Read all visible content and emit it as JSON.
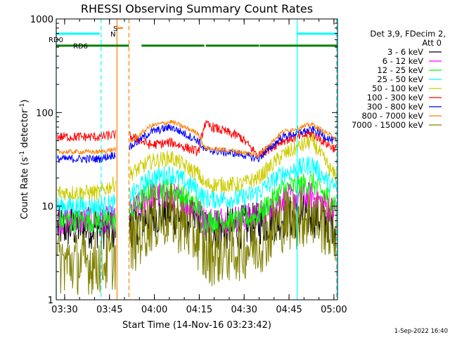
{
  "chart_data": {
    "type": "line",
    "title": "RHESSI Observing Summary Count Rates",
    "xlabel": "Start Time (14-Nov-16 03:23:42)",
    "ylabel_main": "Count Rate (s",
    "ylabel_sup1": "-1",
    "ylabel_mid": " detector",
    "ylabel_sup2": "-1",
    "ylabel_end": ")",
    "yscale": "log",
    "ylim": [
      1,
      1000
    ],
    "xlim_minutes": [
      3.5,
      97.5
    ],
    "x_ticks": [
      {
        "label": "03:30",
        "min": 6.3
      },
      {
        "label": "03:45",
        "min": 21.3
      },
      {
        "label": "04:00",
        "min": 36.3
      },
      {
        "label": "04:15",
        "min": 51.3
      },
      {
        "label": "04:30",
        "min": 66.3
      },
      {
        "label": "04:45",
        "min": 81.3
      },
      {
        "label": "05:00",
        "min": 96.3
      }
    ],
    "y_ticks": [
      {
        "label": "1",
        "v": 1
      },
      {
        "label": "10",
        "v": 10
      },
      {
        "label": "100",
        "v": 100
      },
      {
        "label": "1000",
        "v": 1000
      }
    ],
    "legend": {
      "header": [
        "Det 3,9, FDecim 2,",
        "Att 0"
      ],
      "placement": "right"
    },
    "series": [
      {
        "name": "3 - 6 keV",
        "color": "#000000",
        "level": [
          6,
          6,
          5.5,
          8,
          8.5,
          7,
          5.5,
          6,
          6.5,
          7.5,
          8,
          6.5
        ],
        "noise": 0.55
      },
      {
        "name": "6 - 12 keV",
        "color": "#ff00ff",
        "level": [
          7,
          7,
          7.5,
          13,
          13,
          9,
          7,
          7.5,
          8,
          12,
          13,
          9
        ],
        "noise": 0.35
      },
      {
        "name": "12 - 25 keV",
        "color": "#00ff00",
        "level": [
          7,
          7,
          7,
          15,
          15,
          10,
          7,
          7,
          8,
          15,
          18,
          11
        ],
        "noise": 0.3
      },
      {
        "name": "25 - 50 keV",
        "color": "#00ffff",
        "level": [
          10,
          10,
          11,
          20,
          22,
          15,
          12,
          12,
          14,
          22,
          28,
          16
        ],
        "noise": 0.25
      },
      {
        "name": "50 - 100 keV",
        "color": "#cccc00",
        "level": [
          14,
          14,
          20,
          30,
          33,
          22,
          17,
          17,
          20,
          35,
          50,
          22
        ],
        "noise": 0.2
      },
      {
        "name": "100 - 300 keV",
        "color": "#ff0000",
        "level": [
          55,
          55,
          60,
          45,
          48,
          38,
          75,
          55,
          35,
          50,
          60,
          42
        ],
        "noise": 0.12
      },
      {
        "name": "300 - 800 keV",
        "color": "#0000ff",
        "level": [
          32,
          32,
          38,
          62,
          70,
          50,
          40,
          36,
          32,
          55,
          66,
          50
        ],
        "noise": 0.1
      },
      {
        "name": "800 - 7000 keV",
        "color": "#ff8000",
        "level": [
          38,
          38,
          42,
          72,
          80,
          60,
          42,
          38,
          35,
          62,
          75,
          55
        ],
        "noise": 0.06
      },
      {
        "name": "7000 - 15000 keV",
        "color": "#808000",
        "level": [
          2.5,
          2.5,
          3,
          7,
          8,
          4.5,
          3,
          3.5,
          4,
          7,
          8,
          5.5
        ],
        "noise": 0.8
      }
    ],
    "flags": [
      {
        "label": "RD0",
        "color": "#00ffff",
        "segments": [
          [
            3.5,
            18
          ],
          [
            84,
            97.5
          ]
        ]
      },
      {
        "label": "RD6",
        "color": "#008000",
        "segments": [
          [
            3.5,
            27.8
          ],
          [
            32,
            53
          ],
          [
            53.5,
            71.3
          ],
          [
            71.5,
            97.5
          ]
        ]
      }
    ],
    "annotations": [
      {
        "label": "S",
        "color": "#ff8000"
      },
      {
        "label": "N",
        "color": "#00ffff"
      }
    ],
    "vertical_markers": [
      {
        "min": 3.5,
        "color": "#00ffff",
        "style": "solid"
      },
      {
        "min": 18.5,
        "color": "#00ffff",
        "style": "dashed"
      },
      {
        "min": 23.8,
        "color": "#ff8000",
        "style": "solid"
      },
      {
        "min": 27.8,
        "color": "#ff8000",
        "style": "dashed"
      },
      {
        "min": 84,
        "color": "#00ffff",
        "style": "solid"
      },
      {
        "min": 97.2,
        "color": "#00ffff",
        "style": "dashed"
      }
    ]
  },
  "footer": {
    "date_stamp": "1-Sep-2022 16:40"
  }
}
